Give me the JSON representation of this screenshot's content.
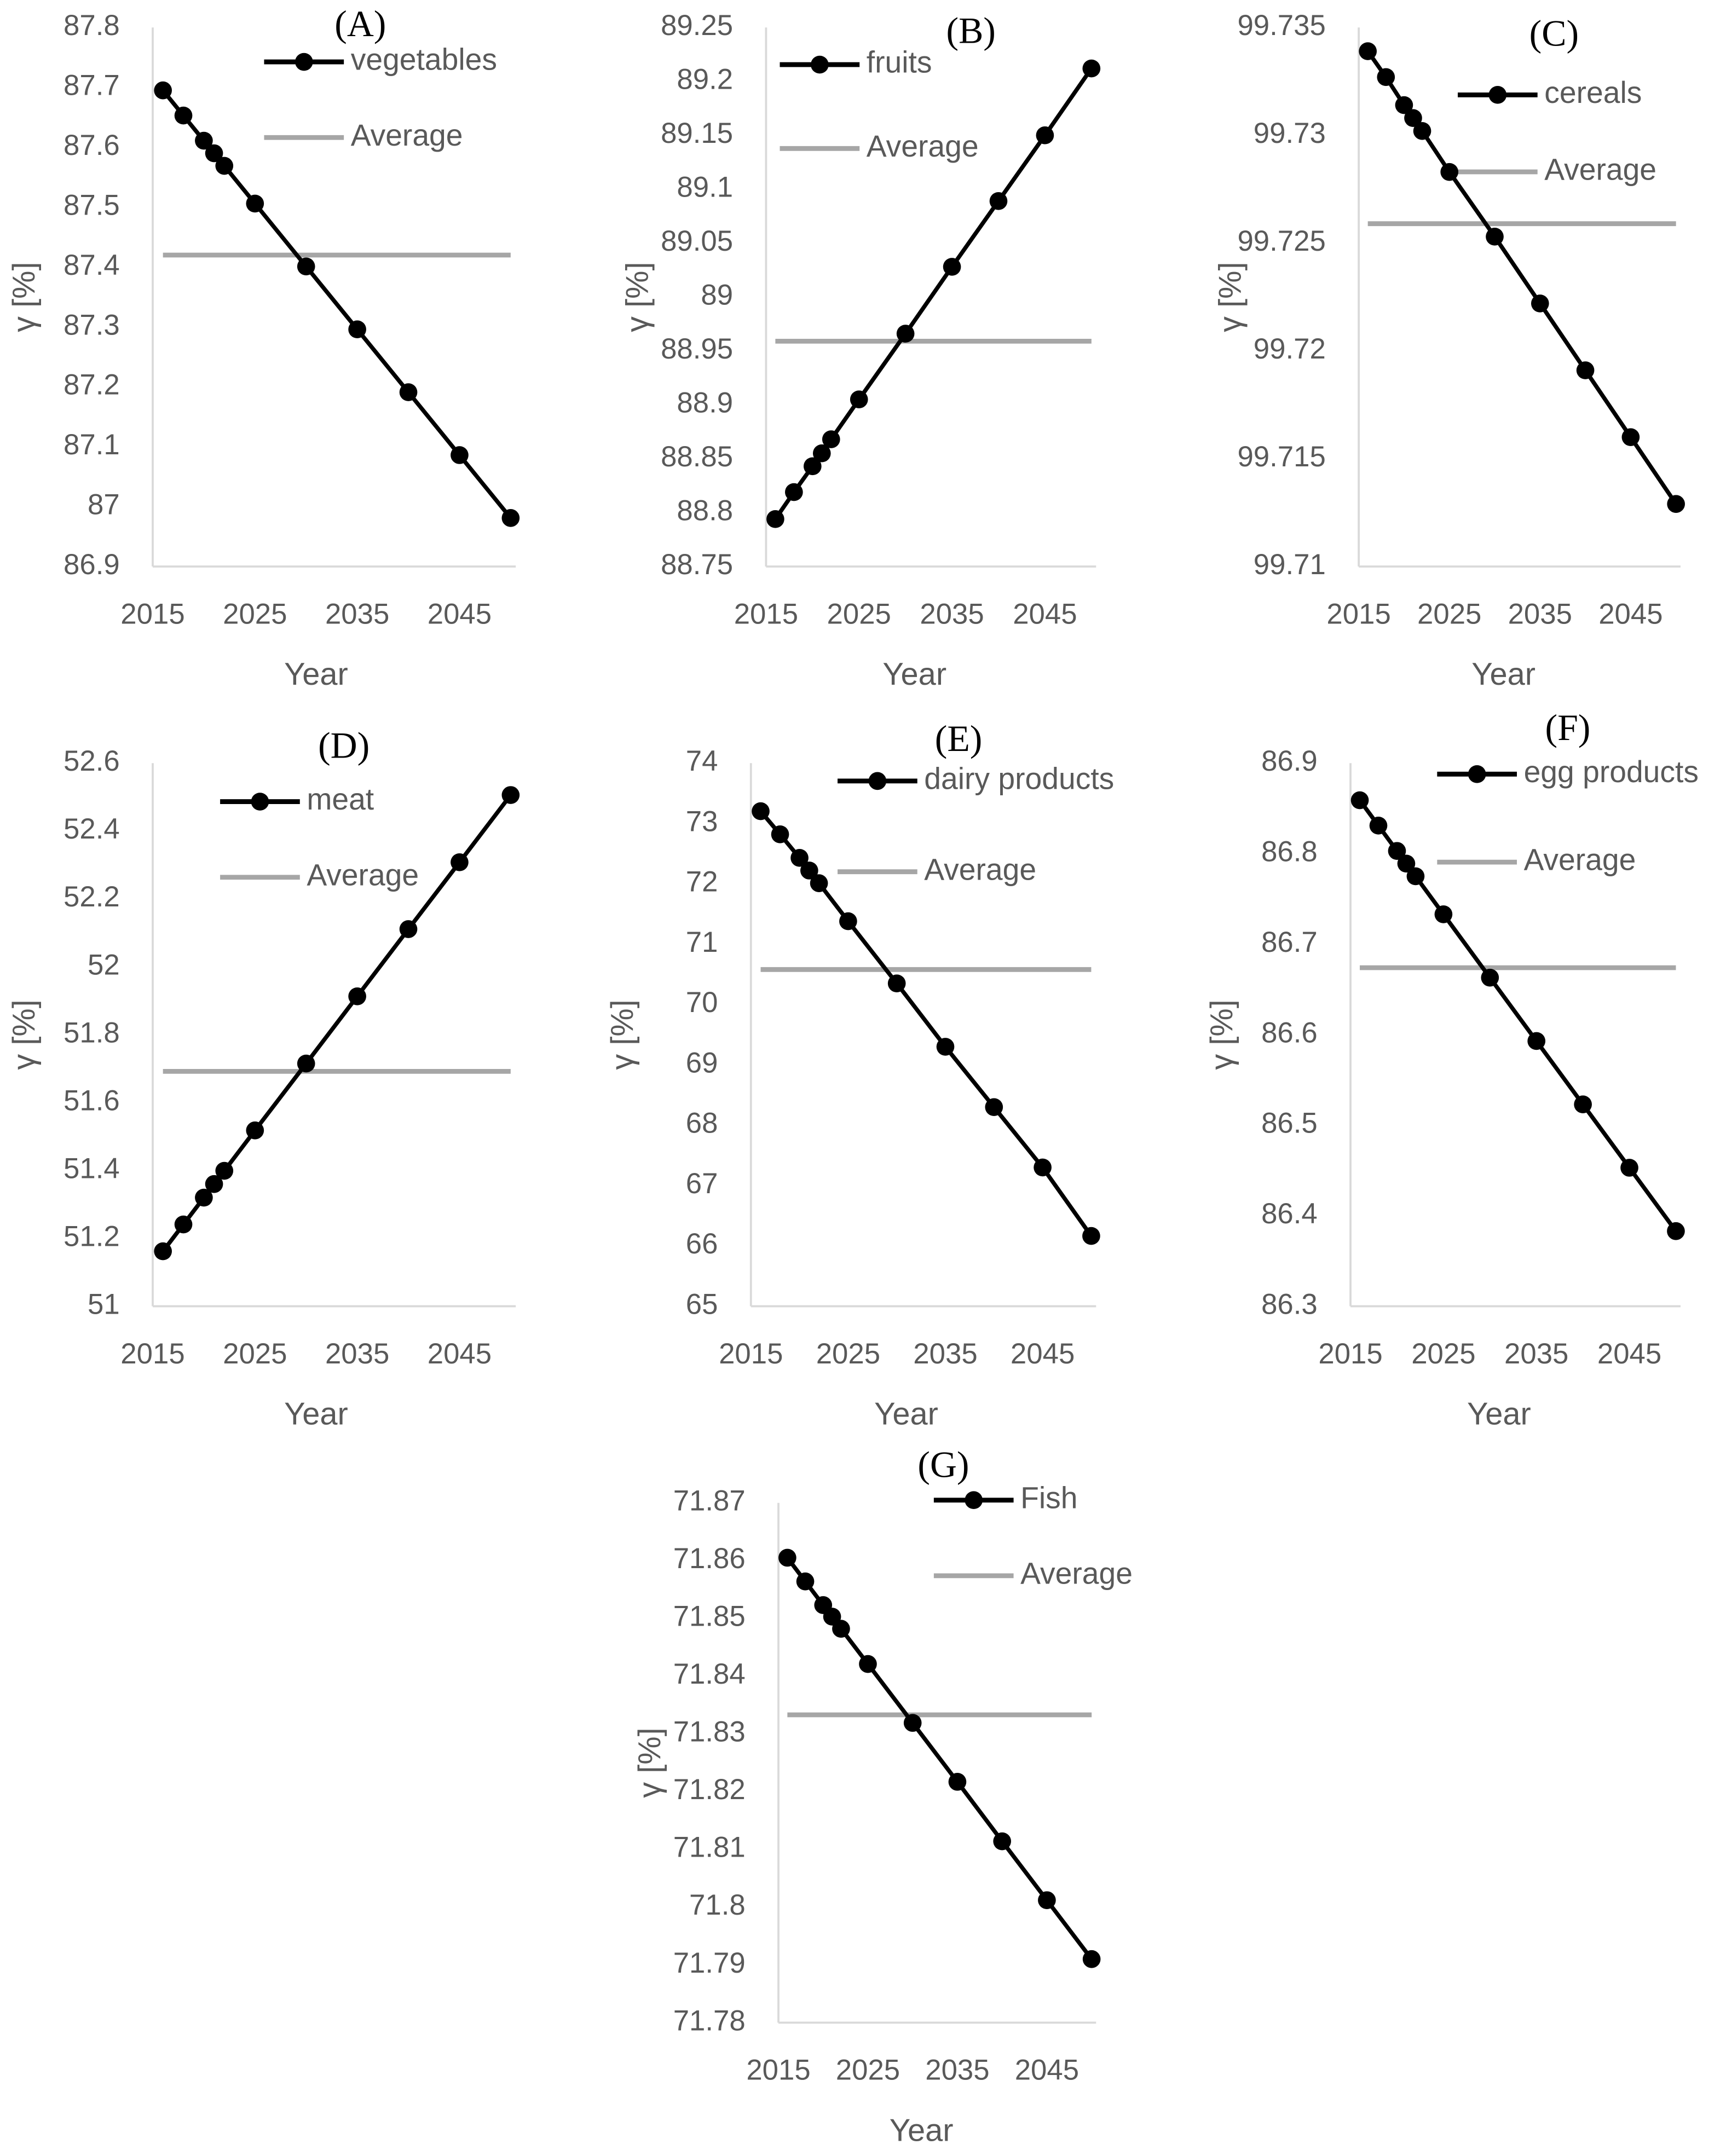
{
  "chart_data": [
    {
      "type": "line",
      "title": "(A)",
      "x_label": "Year",
      "y_label": "γ [%]",
      "x": [
        2016,
        2018,
        2020,
        2021,
        2022,
        2025,
        2030,
        2035,
        2040,
        2045,
        2050
      ],
      "series": [
        {
          "name": "vegetables",
          "color": "#000000",
          "marker": "circle",
          "values": [
            87.695,
            87.653,
            87.611,
            87.59,
            87.569,
            87.506,
            87.401,
            87.296,
            87.191,
            87.086,
            86.981
          ]
        },
        {
          "name": "Average",
          "color": "#a6a6a6",
          "marker": "none",
          "values": [
            87.42,
            87.42,
            87.42,
            87.42,
            87.42,
            87.42,
            87.42,
            87.42,
            87.42,
            87.42,
            87.42
          ]
        }
      ],
      "xlim": [
        2015,
        2050.5
      ],
      "xticks": [
        2015,
        2025,
        2035,
        2045
      ],
      "ylim": [
        86.9,
        87.8
      ],
      "yticks": [
        86.9,
        87,
        87.1,
        87.2,
        87.3,
        87.4,
        87.5,
        87.6,
        87.7,
        87.8
      ]
    },
    {
      "type": "line",
      "title": "(B)",
      "x_label": "Year",
      "y_label": "γ [%]",
      "x": [
        2016,
        2018,
        2020,
        2021,
        2022,
        2025,
        2030,
        2035,
        2040,
        2045,
        2050
      ],
      "series": [
        {
          "name": "fruits",
          "color": "#000000",
          "marker": "circle",
          "values": [
            88.794,
            88.819,
            88.843,
            88.855,
            88.868,
            88.905,
            88.966,
            89.028,
            89.089,
            89.15,
            89.212
          ]
        },
        {
          "name": "Average",
          "color": "#a6a6a6",
          "marker": "none",
          "values": [
            88.959,
            88.959,
            88.959,
            88.959,
            88.959,
            88.959,
            88.959,
            88.959,
            88.959,
            88.959,
            88.959
          ]
        }
      ],
      "xlim": [
        2015,
        2050.5
      ],
      "xticks": [
        2015,
        2025,
        2035,
        2045
      ],
      "ylim": [
        88.75,
        89.25
      ],
      "yticks": [
        88.75,
        88.8,
        88.85,
        88.9,
        88.95,
        89,
        89.05,
        89.1,
        89.15,
        89.2,
        89.25
      ]
    },
    {
      "type": "line",
      "title": "(C)",
      "x_label": "Year",
      "y_label": "γ [%]",
      "x": [
        2016,
        2018,
        2020,
        2021,
        2022,
        2025,
        2030,
        2035,
        2040,
        2045,
        2050
      ],
      "series": [
        {
          "name": "cereals",
          "color": "#000000",
          "marker": "circle",
          "values": [
            99.7339,
            99.7327,
            99.7314,
            99.7308,
            99.7302,
            99.7283,
            99.7253,
            99.7222,
            99.7191,
            99.716,
            99.7129
          ]
        },
        {
          "name": "Average",
          "color": "#a6a6a6",
          "marker": "none",
          "values": [
            99.7259,
            99.7259,
            99.7259,
            99.7259,
            99.7259,
            99.7259,
            99.7259,
            99.7259,
            99.7259,
            99.7259,
            99.7259
          ]
        }
      ],
      "xlim": [
        2015,
        2050.5
      ],
      "xticks": [
        2015,
        2025,
        2035,
        2045
      ],
      "ylim": [
        99.71,
        99.735
      ],
      "yticks": [
        99.71,
        99.715,
        99.72,
        99.725,
        99.73,
        99.735
      ]
    },
    {
      "type": "line",
      "title": "(D)",
      "x_label": "Year",
      "y_label": "γ [%]",
      "x": [
        2016,
        2018,
        2020,
        2021,
        2022,
        2025,
        2030,
        2035,
        2040,
        2045,
        2050
      ],
      "series": [
        {
          "name": "meat",
          "color": "#000000",
          "marker": "circle",
          "values": [
            51.162,
            51.241,
            51.32,
            51.36,
            51.399,
            51.518,
            51.715,
            51.913,
            52.111,
            52.308,
            52.506
          ]
        },
        {
          "name": "Average",
          "color": "#a6a6a6",
          "marker": "none",
          "values": [
            51.692,
            51.692,
            51.692,
            51.692,
            51.692,
            51.692,
            51.692,
            51.692,
            51.692,
            51.692,
            51.692
          ]
        }
      ],
      "xlim": [
        2015,
        2050.5
      ],
      "xticks": [
        2015,
        2025,
        2035,
        2045
      ],
      "ylim": [
        51,
        52.6
      ],
      "yticks": [
        51,
        51.2,
        51.4,
        51.6,
        51.8,
        52,
        52.2,
        52.4,
        52.6
      ]
    },
    {
      "type": "line",
      "title": "(E)",
      "x_label": "Year",
      "y_label": "γ [%]",
      "x": [
        2016,
        2018,
        2020,
        2021,
        2022,
        2025,
        2030,
        2035,
        2040,
        2045,
        2050
      ],
      "series": [
        {
          "name": "dairy products",
          "color": "#000000",
          "marker": "circle",
          "values": [
            73.203,
            72.82,
            72.43,
            72.22,
            72.01,
            71.38,
            70.35,
            69.3,
            68.3,
            67.3,
            66.165
          ]
        },
        {
          "name": "Average",
          "color": "#a6a6a6",
          "marker": "none",
          "values": [
            70.58,
            70.58,
            70.58,
            70.58,
            70.58,
            70.58,
            70.58,
            70.58,
            70.58,
            70.58,
            70.58
          ]
        }
      ],
      "xlim": [
        2015,
        2050.5
      ],
      "xticks": [
        2015,
        2025,
        2035,
        2045
      ],
      "ylim": [
        65,
        74
      ],
      "yticks": [
        65,
        66,
        67,
        68,
        69,
        70,
        71,
        72,
        73,
        74
      ]
    },
    {
      "type": "line",
      "title": "(F)",
      "x_label": "Year",
      "y_label": "γ [%]",
      "x": [
        2016,
        2018,
        2020,
        2021,
        2022,
        2025,
        2030,
        2035,
        2040,
        2045,
        2050
      ],
      "series": [
        {
          "name": "egg products",
          "color": "#000000",
          "marker": "circle",
          "values": [
            86.859,
            86.831,
            86.803,
            86.789,
            86.775,
            86.733,
            86.663,
            86.593,
            86.523,
            86.453,
            86.383
          ]
        },
        {
          "name": "Average",
          "color": "#a6a6a6",
          "marker": "none",
          "values": [
            86.674,
            86.674,
            86.674,
            86.674,
            86.674,
            86.674,
            86.674,
            86.674,
            86.674,
            86.674,
            86.674
          ]
        }
      ],
      "xlim": [
        2015,
        2050.5
      ],
      "xticks": [
        2015,
        2025,
        2035,
        2045
      ],
      "ylim": [
        86.3,
        86.9
      ],
      "yticks": [
        86.3,
        86.4,
        86.5,
        86.6,
        86.7,
        86.8,
        86.9
      ]
    },
    {
      "type": "line",
      "title": "(G)",
      "x_label": "Year",
      "y_label": "γ [%]",
      "x": [
        2016,
        2018,
        2020,
        2021,
        2022,
        2025,
        2030,
        2035,
        2040,
        2045,
        2050
      ],
      "series": [
        {
          "name": "Fish",
          "color": "#000000",
          "marker": "circle",
          "values": [
            71.8605,
            71.8564,
            71.8523,
            71.8503,
            71.8482,
            71.8421,
            71.8319,
            71.8217,
            71.8114,
            71.8012,
            71.791
          ]
        },
        {
          "name": "Average",
          "color": "#a6a6a6",
          "marker": "none",
          "values": [
            71.8333,
            71.8333,
            71.8333,
            71.8333,
            71.8333,
            71.8333,
            71.8333,
            71.8333,
            71.8333,
            71.8333,
            71.8333
          ]
        }
      ],
      "xlim": [
        2015,
        2050.5
      ],
      "xticks": [
        2015,
        2025,
        2035,
        2045
      ],
      "ylim": [
        71.78,
        71.87
      ],
      "yticks": [
        71.78,
        71.79,
        71.8,
        71.81,
        71.82,
        71.83,
        71.84,
        71.85,
        71.86,
        71.87
      ]
    }
  ]
}
